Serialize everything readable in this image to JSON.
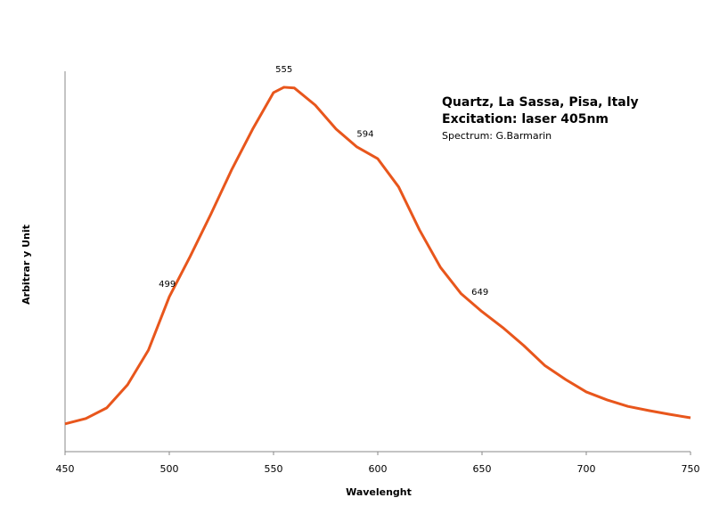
{
  "chart_data": {
    "type": "line",
    "annotations_text": [
      "Quartz, La Sassa, Pisa, Italy",
      "Excitation: laser 405nm",
      "Spectrum: G.Barmarin"
    ],
    "xlabel": "Wavelenght",
    "ylabel": "Arbitrar y Unit",
    "x": [
      450,
      460,
      470,
      480,
      490,
      500,
      510,
      520,
      530,
      540,
      550,
      555,
      560,
      570,
      580,
      590,
      600,
      610,
      620,
      630,
      640,
      650,
      660,
      670,
      680,
      690,
      700,
      710,
      720,
      730,
      740,
      750
    ],
    "series": [
      {
        "name": "Quartz, La Sassa, Pisa, Italy",
        "color": "#e8561c",
        "values": [
          7.3,
          8.7,
          11.5,
          17.6,
          26.7,
          40.7,
          51.3,
          62.5,
          74.2,
          84.8,
          94.4,
          95.8,
          95.6,
          91.1,
          84.8,
          80.1,
          77.0,
          69.6,
          58.3,
          48.5,
          41.5,
          36.8,
          32.6,
          27.9,
          22.7,
          19.0,
          15.7,
          13.6,
          11.9,
          10.8,
          9.8,
          8.9
        ]
      }
    ],
    "peaks": [
      499,
      555,
      594,
      649
    ],
    "xlim": [
      450,
      750
    ],
    "xticks": [
      450,
      500,
      550,
      600,
      650,
      700,
      750
    ],
    "ylim": [
      0,
      100
    ],
    "grid": false
  }
}
